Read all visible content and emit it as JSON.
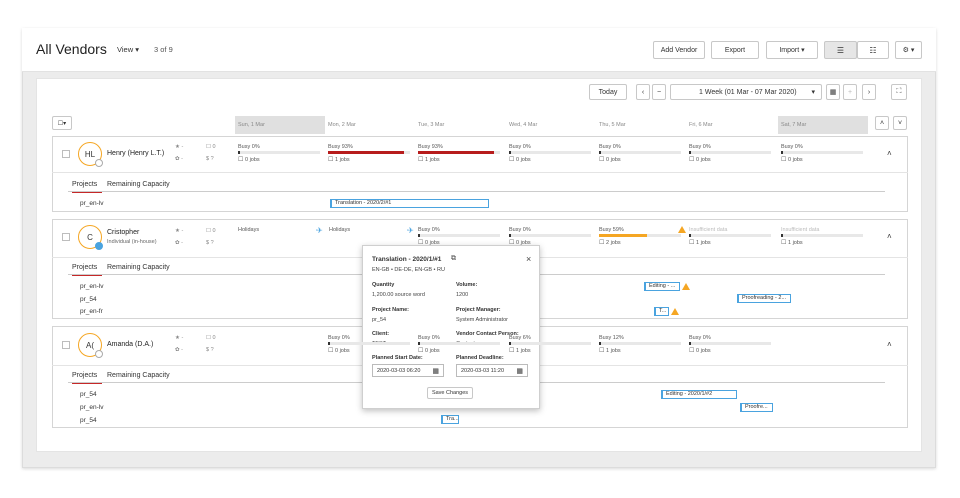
{
  "header": {
    "title": "All Vendors",
    "view_label": "View ▾",
    "count": "3 of 9",
    "add_vendor": "Add Vendor",
    "export": "Export",
    "import": "Import ▾"
  },
  "toolbar": {
    "today": "Today",
    "range": "1 Week (01 Mar - 07 Mar 2020)"
  },
  "days": [
    "Sun, 1 Mar",
    "Mon, 2 Mar",
    "Tue, 3 Mar",
    "Wed, 4 Mar",
    "Thu, 5 Mar",
    "Fri, 6 Mar",
    "Sat, 7 Mar"
  ],
  "tabs": {
    "projects": "Projects",
    "remaining": "Remaining Capacity"
  },
  "vendors": [
    {
      "initials": "HL",
      "name": "Henry (Henry L.T.)",
      "sub": "",
      "star": "★ -",
      "gear": "✿ -",
      "msg": "0",
      "dollar": "?",
      "cells": [
        {
          "status": "Busy 0%",
          "jobs": "0 jobs",
          "fill": 0.02,
          "color": "#333"
        },
        {
          "status": "Busy 93%",
          "jobs": "1 jobs",
          "fill": 0.93,
          "color": "#b71c1c"
        },
        {
          "status": "Busy 93%",
          "jobs": "1 jobs",
          "fill": 0.93,
          "color": "#b71c1c"
        },
        {
          "status": "Busy 0%",
          "jobs": "0 jobs",
          "fill": 0.02,
          "color": "#333"
        },
        {
          "status": "Busy 0%",
          "jobs": "0 jobs",
          "fill": 0.02,
          "color": "#333"
        },
        {
          "status": "Busy 0%",
          "jobs": "0 jobs",
          "fill": 0.02,
          "color": "#333"
        },
        {
          "status": "Busy 0%",
          "jobs": "0 jobs",
          "fill": 0.02,
          "color": "#333"
        }
      ],
      "projects": [
        "pr_en-lv"
      ],
      "task": "Translation - 2020/2/#1"
    },
    {
      "initials": "C",
      "name": "Cristopher",
      "sub": "Individual (in-house)",
      "star": "★ -",
      "gear": "✿ -",
      "msg": "0",
      "dollar": "?",
      "holiday1": "Holidays",
      "holiday2": "Holidays",
      "cells": [
        {
          "status": "Busy 0%",
          "jobs": "0 jobs"
        },
        {
          "status": "Busy 0%",
          "jobs": "0 jobs"
        },
        {
          "status": "Busy 59%",
          "jobs": "2 jobs",
          "fill": 0.59,
          "color": "#f5a623"
        },
        {
          "status": "Insufficient data",
          "jobs": "1 jobs"
        },
        {
          "status": "Insufficient data",
          "jobs": "1 jobs"
        }
      ],
      "projects": [
        "pr_en-lv",
        "pr_54",
        "pr_en-fr"
      ],
      "tasks": [
        "Editing - ...",
        "Proofreading - 2...",
        "T..."
      ]
    },
    {
      "initials": "A(",
      "name": "Amanda (D.A.)",
      "sub": "",
      "star": "★ -",
      "gear": "✿ -",
      "msg": "0",
      "dollar": "?",
      "cells": [
        {
          "status": "Busy 0%",
          "jobs": "0 jobs"
        },
        {
          "status": "Busy 0%",
          "jobs": "0 jobs"
        },
        {
          "status": "Busy 6%",
          "jobs": "1 jobs"
        },
        {
          "status": "Busy 12%",
          "jobs": "1 jobs"
        },
        {
          "status": "Busy 0%",
          "jobs": "0 jobs"
        }
      ],
      "projects": [
        "pr_54",
        "pr_en-lv",
        "pr_54"
      ],
      "tasks": [
        "Editing - 2020/1/#2",
        "Proofre...",
        "Tra..."
      ]
    }
  ],
  "popup": {
    "title": "Translation - 2020/1/#1",
    "langs": "EN-GB • DE-DE, EN-GB • RU",
    "close": "×",
    "quantity_label": "Quantity",
    "quantity": "1,200.00 source word",
    "volume_label": "Volume:",
    "volume": "1200",
    "pname_label": "Project Name:",
    "pname": "pr_54",
    "pm_label": "Project Manager:",
    "pm": "System Administrator",
    "client_label": "Client:",
    "client": "TEST",
    "vcp_label": "Vendor Contact Person:",
    "vcp": "Contact",
    "start_label": "Planned Start Date:",
    "start": "2020-03-03 06:20",
    "deadline_label": "Planned Deadline:",
    "deadline": "2020-03-03 11:20",
    "save": "Save Changes"
  }
}
